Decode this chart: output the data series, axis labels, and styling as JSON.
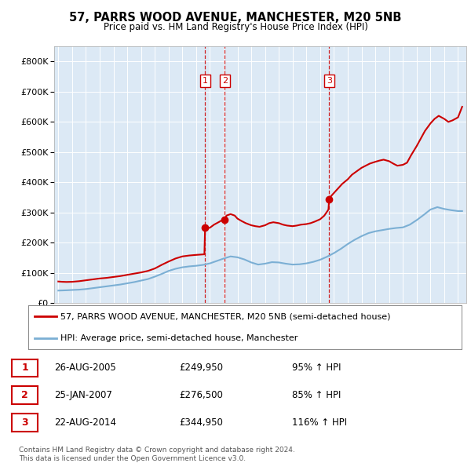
{
  "title": "57, PARRS WOOD AVENUE, MANCHESTER, M20 5NB",
  "subtitle": "Price paid vs. HM Land Registry's House Price Index (HPI)",
  "legend_line1": "57, PARRS WOOD AVENUE, MANCHESTER, M20 5NB (semi-detached house)",
  "legend_line2": "HPI: Average price, semi-detached house, Manchester",
  "footer1": "Contains HM Land Registry data © Crown copyright and database right 2024.",
  "footer2": "This data is licensed under the Open Government Licence v3.0.",
  "transactions": [
    {
      "num": 1,
      "date": "26-AUG-2005",
      "price": "£249,950",
      "pct": "95% ↑ HPI"
    },
    {
      "num": 2,
      "date": "25-JAN-2007",
      "price": "£276,500",
      "pct": "85% ↑ HPI"
    },
    {
      "num": 3,
      "date": "22-AUG-2014",
      "price": "£344,950",
      "pct": "116% ↑ HPI"
    }
  ],
  "transaction_years": [
    2005.65,
    2007.07,
    2014.65
  ],
  "ylim": [
    0,
    850000
  ],
  "yticks": [
    0,
    100000,
    200000,
    300000,
    400000,
    500000,
    600000,
    700000,
    800000
  ],
  "background_color": "#dce9f5",
  "red_line_color": "#cc0000",
  "blue_line_color": "#7bafd4",
  "dashed_vline_color": "#cc0000",
  "grid_color": "#ffffff",
  "box_color": "#cc0000",
  "start_year": 1995,
  "end_year": 2024,
  "red_line_data": [
    [
      1995.0,
      72000
    ],
    [
      1995.3,
      71000
    ],
    [
      1995.6,
      70500
    ],
    [
      1996.0,
      71000
    ],
    [
      1996.5,
      73000
    ],
    [
      1997.0,
      76000
    ],
    [
      1997.5,
      79000
    ],
    [
      1998.0,
      82000
    ],
    [
      1998.5,
      84000
    ],
    [
      1999.0,
      87000
    ],
    [
      1999.5,
      90000
    ],
    [
      2000.0,
      94000
    ],
    [
      2000.5,
      98000
    ],
    [
      2001.0,
      102000
    ],
    [
      2001.5,
      107000
    ],
    [
      2002.0,
      115000
    ],
    [
      2002.5,
      127000
    ],
    [
      2003.0,
      138000
    ],
    [
      2003.5,
      148000
    ],
    [
      2004.0,
      155000
    ],
    [
      2004.5,
      158000
    ],
    [
      2005.0,
      160000
    ],
    [
      2005.3,
      161000
    ],
    [
      2005.6,
      162000
    ],
    [
      2005.65,
      249950
    ],
    [
      2005.8,
      248000
    ],
    [
      2006.0,
      250000
    ],
    [
      2006.3,
      260000
    ],
    [
      2006.7,
      270000
    ],
    [
      2007.0,
      278000
    ],
    [
      2007.07,
      276500
    ],
    [
      2007.2,
      290000
    ],
    [
      2007.5,
      295000
    ],
    [
      2007.8,
      290000
    ],
    [
      2008.0,
      280000
    ],
    [
      2008.3,
      272000
    ],
    [
      2008.6,
      265000
    ],
    [
      2009.0,
      258000
    ],
    [
      2009.3,
      255000
    ],
    [
      2009.6,
      253000
    ],
    [
      2010.0,
      258000
    ],
    [
      2010.3,
      265000
    ],
    [
      2010.6,
      268000
    ],
    [
      2011.0,
      265000
    ],
    [
      2011.3,
      260000
    ],
    [
      2011.6,
      257000
    ],
    [
      2012.0,
      255000
    ],
    [
      2012.3,
      257000
    ],
    [
      2012.6,
      260000
    ],
    [
      2013.0,
      262000
    ],
    [
      2013.3,
      265000
    ],
    [
      2013.6,
      270000
    ],
    [
      2014.0,
      278000
    ],
    [
      2014.3,
      290000
    ],
    [
      2014.6,
      310000
    ],
    [
      2014.65,
      344950
    ],
    [
      2014.8,
      355000
    ],
    [
      2015.0,
      365000
    ],
    [
      2015.3,
      380000
    ],
    [
      2015.6,
      395000
    ],
    [
      2016.0,
      410000
    ],
    [
      2016.3,
      425000
    ],
    [
      2016.6,
      435000
    ],
    [
      2017.0,
      448000
    ],
    [
      2017.3,
      455000
    ],
    [
      2017.6,
      462000
    ],
    [
      2018.0,
      468000
    ],
    [
      2018.3,
      472000
    ],
    [
      2018.6,
      475000
    ],
    [
      2019.0,
      470000
    ],
    [
      2019.3,
      462000
    ],
    [
      2019.6,
      455000
    ],
    [
      2020.0,
      458000
    ],
    [
      2020.3,
      465000
    ],
    [
      2020.6,
      490000
    ],
    [
      2021.0,
      520000
    ],
    [
      2021.3,
      545000
    ],
    [
      2021.6,
      570000
    ],
    [
      2022.0,
      595000
    ],
    [
      2022.3,
      610000
    ],
    [
      2022.6,
      620000
    ],
    [
      2023.0,
      610000
    ],
    [
      2023.3,
      600000
    ],
    [
      2023.6,
      605000
    ],
    [
      2024.0,
      615000
    ],
    [
      2024.3,
      650000
    ]
  ],
  "blue_line_data": [
    [
      1995.0,
      42000
    ],
    [
      1995.3,
      42500
    ],
    [
      1995.6,
      43000
    ],
    [
      1996.0,
      44000
    ],
    [
      1996.5,
      45000
    ],
    [
      1997.0,
      47000
    ],
    [
      1997.5,
      50000
    ],
    [
      1998.0,
      53000
    ],
    [
      1998.5,
      56000
    ],
    [
      1999.0,
      59000
    ],
    [
      1999.5,
      62000
    ],
    [
      2000.0,
      66000
    ],
    [
      2000.5,
      70000
    ],
    [
      2001.0,
      75000
    ],
    [
      2001.5,
      80000
    ],
    [
      2002.0,
      88000
    ],
    [
      2002.5,
      97000
    ],
    [
      2003.0,
      107000
    ],
    [
      2003.5,
      114000
    ],
    [
      2004.0,
      119000
    ],
    [
      2004.5,
      122000
    ],
    [
      2005.0,
      124000
    ],
    [
      2005.5,
      127000
    ],
    [
      2006.0,
      132000
    ],
    [
      2006.5,
      140000
    ],
    [
      2007.0,
      148000
    ],
    [
      2007.5,
      155000
    ],
    [
      2008.0,
      152000
    ],
    [
      2008.5,
      145000
    ],
    [
      2009.0,
      135000
    ],
    [
      2009.5,
      128000
    ],
    [
      2010.0,
      131000
    ],
    [
      2010.5,
      136000
    ],
    [
      2011.0,
      135000
    ],
    [
      2011.5,
      131000
    ],
    [
      2012.0,
      128000
    ],
    [
      2012.5,
      129000
    ],
    [
      2013.0,
      132000
    ],
    [
      2013.5,
      137000
    ],
    [
      2014.0,
      144000
    ],
    [
      2014.5,
      154000
    ],
    [
      2015.0,
      166000
    ],
    [
      2015.5,
      180000
    ],
    [
      2016.0,
      196000
    ],
    [
      2016.5,
      210000
    ],
    [
      2017.0,
      222000
    ],
    [
      2017.5,
      232000
    ],
    [
      2018.0,
      238000
    ],
    [
      2018.5,
      242000
    ],
    [
      2019.0,
      246000
    ],
    [
      2019.5,
      249000
    ],
    [
      2020.0,
      251000
    ],
    [
      2020.5,
      260000
    ],
    [
      2021.0,
      275000
    ],
    [
      2021.5,
      292000
    ],
    [
      2022.0,
      310000
    ],
    [
      2022.5,
      318000
    ],
    [
      2023.0,
      312000
    ],
    [
      2023.5,
      308000
    ],
    [
      2024.0,
      305000
    ],
    [
      2024.3,
      305000
    ]
  ]
}
